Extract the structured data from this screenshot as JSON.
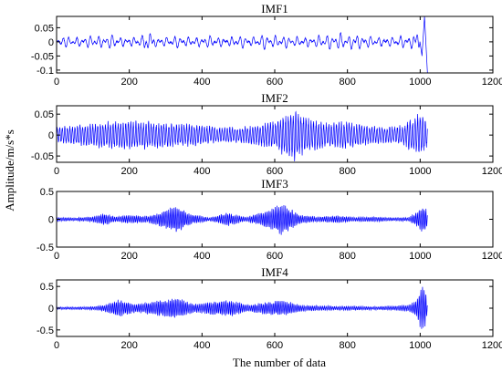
{
  "figure": {
    "ylabel": "Amplitude/m/s*s",
    "xlabel": "The number of data"
  },
  "chart_data": [
    {
      "type": "line",
      "title": "IMF1",
      "xlim": [
        0,
        1200
      ],
      "ylim": [
        -0.11,
        0.09
      ],
      "xticks": [
        0,
        200,
        400,
        600,
        800,
        1000,
        1200
      ],
      "yticks": [
        0.05,
        0,
        -0.05,
        -0.1
      ],
      "ytick_labels": [
        "0.05",
        "0",
        "-0.05",
        "-0.1"
      ],
      "grid": false,
      "line_color": "#0000ff",
      "series": [
        {
          "x": [
            0,
            30,
            60,
            90,
            120,
            150,
            180,
            210,
            240,
            255,
            270,
            300,
            330,
            360,
            390,
            420,
            450,
            480,
            510,
            540,
            570,
            600,
            630,
            660,
            690,
            720,
            750,
            780,
            810,
            830,
            860,
            890,
            920,
            950,
            980,
            995,
            1005,
            1012,
            1020
          ],
          "values": [
            0.0,
            0.02,
            -0.02,
            0.025,
            -0.025,
            0.03,
            -0.02,
            0.02,
            -0.03,
            0.04,
            -0.02,
            0.02,
            -0.025,
            0.02,
            -0.02,
            0.025,
            -0.02,
            0.02,
            -0.025,
            0.02,
            -0.03,
            0.025,
            -0.025,
            0.02,
            -0.02,
            0.025,
            -0.03,
            0.035,
            -0.03,
            0.03,
            -0.025,
            0.02,
            -0.02,
            0.025,
            -0.03,
            0.04,
            -0.05,
            0.09,
            -0.11
          ]
        }
      ]
    },
    {
      "type": "line",
      "title": "IMF2",
      "xlim": [
        0,
        1200
      ],
      "ylim": [
        -0.065,
        0.07
      ],
      "xticks": [
        0,
        200,
        400,
        600,
        800,
        1000,
        1200
      ],
      "yticks": [
        0.05,
        0,
        -0.05
      ],
      "ytick_labels": [
        "0.05",
        "0",
        "-0.05"
      ],
      "grid": false,
      "line_color": "#0000ff",
      "series": [
        {
          "x": [
            0,
            50,
            100,
            150,
            200,
            250,
            300,
            350,
            400,
            450,
            500,
            550,
            600,
            650,
            700,
            750,
            800,
            850,
            900,
            950,
            1000,
            1020
          ],
          "values": [
            0.02,
            0.025,
            0.03,
            0.035,
            0.035,
            0.035,
            0.03,
            0.03,
            0.025,
            0.02,
            0.02,
            0.025,
            0.035,
            0.065,
            0.04,
            0.03,
            0.035,
            0.025,
            0.02,
            0.025,
            0.055,
            0.03
          ]
        }
      ]
    },
    {
      "type": "line",
      "title": "IMF3",
      "xlim": [
        0,
        1200
      ],
      "ylim": [
        -0.5,
        0.5
      ],
      "xticks": [
        0,
        200,
        400,
        600,
        800,
        1000,
        1200
      ],
      "yticks": [
        0.5,
        0,
        -0.5
      ],
      "ytick_labels": [
        "0.5",
        "0",
        "-0.5"
      ],
      "grid": false,
      "line_color": "#0000ff",
      "series": [
        {
          "x": [
            0,
            50,
            100,
            130,
            160,
            200,
            250,
            290,
            330,
            370,
            420,
            470,
            520,
            570,
            620,
            670,
            720,
            770,
            820,
            870,
            920,
            970,
            1000,
            1010,
            1020
          ],
          "values": [
            0.04,
            0.03,
            0.05,
            0.12,
            0.05,
            0.08,
            0.06,
            0.15,
            0.27,
            0.1,
            0.03,
            0.13,
            0.04,
            0.14,
            0.3,
            0.08,
            0.05,
            0.07,
            0.04,
            0.05,
            0.03,
            0.04,
            0.2,
            0.3,
            0.15
          ]
        }
      ]
    },
    {
      "type": "line",
      "title": "IMF4",
      "xlim": [
        0,
        1200
      ],
      "ylim": [
        -0.65,
        0.65
      ],
      "xticks": [
        0,
        200,
        400,
        600,
        800,
        1000,
        1200
      ],
      "yticks": [
        0.5,
        0,
        -0.5
      ],
      "ytick_labels": [
        "0.5",
        "0",
        "-0.5"
      ],
      "grid": false,
      "line_color": "#0000ff",
      "series": [
        {
          "x": [
            0,
            50,
            100,
            130,
            170,
            220,
            270,
            330,
            380,
            430,
            480,
            530,
            580,
            620,
            670,
            720,
            770,
            820,
            870,
            920,
            970,
            990,
            1005,
            1015,
            1020
          ],
          "values": [
            0.03,
            0.03,
            0.04,
            0.08,
            0.22,
            0.1,
            0.18,
            0.25,
            0.1,
            0.16,
            0.2,
            0.08,
            0.15,
            0.2,
            0.08,
            0.06,
            0.05,
            0.05,
            0.04,
            0.05,
            0.08,
            0.2,
            0.6,
            0.4,
            0.1
          ]
        }
      ]
    }
  ]
}
